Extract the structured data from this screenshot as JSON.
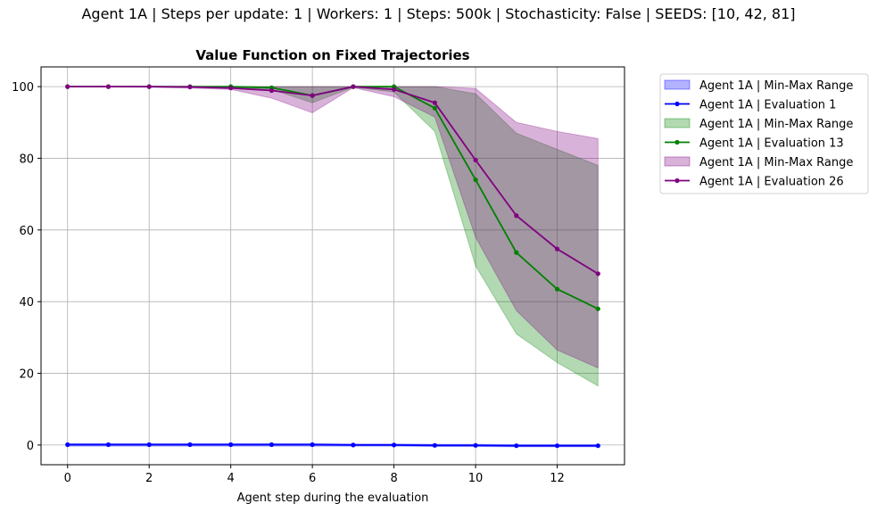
{
  "suptitle": "Agent 1A | Steps per update: 1 | Workers: 1 | Steps: 500k | Stochasticity: False | SEEDS: [10, 42, 81]",
  "chart_data": {
    "type": "line",
    "title": "Value Function on Fixed Trajectories",
    "xlabel": "Agent step during the evaluation",
    "ylabel": "",
    "xlim": [
      -0.65,
      13.65
    ],
    "ylim": [
      -5.5,
      105.5
    ],
    "xticks": [
      0,
      2,
      4,
      6,
      8,
      10,
      12
    ],
    "yticks": [
      0,
      20,
      40,
      60,
      80,
      100
    ],
    "grid": true,
    "legend_position": "outside-upper-right",
    "x": [
      0,
      1,
      2,
      3,
      4,
      5,
      6,
      7,
      8,
      9,
      10,
      11,
      12,
      13
    ],
    "series": [
      {
        "name": "Agent 1A | Evaluation 1",
        "range_name": "Agent 1A | Min-Max Range",
        "color": "#0000ff",
        "fill_color": "#0000ff",
        "fill_opacity": 0.3,
        "values": [
          0.1,
          0.1,
          0.1,
          0.1,
          0.1,
          0.1,
          0.1,
          0.0,
          0.0,
          -0.1,
          -0.1,
          -0.2,
          -0.2,
          -0.2
        ],
        "min": [
          -0.3,
          -0.3,
          -0.3,
          -0.3,
          -0.3,
          -0.3,
          -0.3,
          -0.3,
          -0.3,
          -0.4,
          -0.4,
          -0.5,
          -0.5,
          -0.5
        ],
        "max": [
          0.4,
          0.4,
          0.4,
          0.4,
          0.4,
          0.4,
          0.4,
          0.3,
          0.3,
          0.2,
          0.2,
          0.1,
          0.1,
          0.1
        ]
      },
      {
        "name": "Agent 1A | Evaluation 13",
        "range_name": "Agent 1A | Min-Max Range",
        "color": "#008000",
        "fill_color": "#008000",
        "fill_opacity": 0.3,
        "values": [
          100,
          100,
          100,
          100,
          100,
          99.7,
          97.5,
          100,
          100,
          94,
          74,
          53.7,
          43.5,
          38
        ],
        "min": [
          99.9,
          99.9,
          99.9,
          99.8,
          99.7,
          99.2,
          95.5,
          99.8,
          98.5,
          87.5,
          50,
          31,
          23,
          16.5
        ],
        "max": [
          100,
          100,
          100,
          100,
          100,
          100,
          100,
          100,
          100,
          100,
          98,
          87,
          82.5,
          78
        ]
      },
      {
        "name": "Agent 1A | Evaluation 26",
        "range_name": "Agent 1A | Min-Max Range",
        "color": "#800080",
        "fill_color": "#800080",
        "fill_opacity": 0.3,
        "values": [
          100,
          100,
          100,
          99.9,
          99.6,
          98.9,
          97.5,
          100,
          99.2,
          95.5,
          79.5,
          64,
          54.7,
          47.8
        ],
        "min": [
          99.9,
          99.9,
          99.8,
          99.6,
          99.2,
          96.8,
          92.7,
          99.7,
          97.2,
          91.5,
          58,
          37.5,
          26.5,
          21.5
        ],
        "max": [
          100,
          100,
          100,
          100,
          100,
          100,
          100,
          100,
          100,
          100,
          99.5,
          90,
          87.5,
          85.5
        ]
      }
    ]
  }
}
